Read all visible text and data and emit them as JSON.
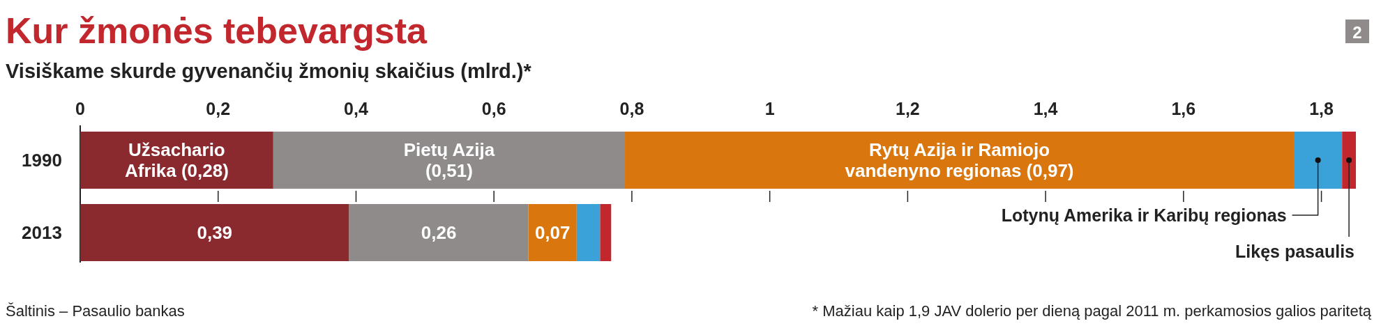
{
  "chart_data": {
    "type": "bar",
    "orientation": "horizontal",
    "stacked": true,
    "title": "Kur žmonės tebevargsta",
    "subtitle": "Visiškame skurde gyvenančių žmonių skaičius (mlrd.)*",
    "categories": [
      "1990",
      "2013"
    ],
    "xlim": [
      0,
      1.85
    ],
    "xticks": [
      0,
      {
        "value": 0.2,
        "label": "0,2"
      },
      {
        "value": 0.4,
        "label": "0,4"
      },
      {
        "value": 0.6,
        "label": "0,6"
      },
      {
        "value": 0.8,
        "label": "0,8"
      },
      1,
      {
        "value": 1.2,
        "label": "1,2"
      },
      {
        "value": 1.4,
        "label": "1,4"
      },
      {
        "value": 1.6,
        "label": "1,6"
      },
      {
        "value": 1.8,
        "label": "1,8"
      }
    ],
    "series": [
      {
        "color": "#8a2a2e",
        "values": [
          0.28,
          0.39
        ],
        "value_labels": [
          "Užsachario\nAfrika (0,28)",
          "0,39"
        ]
      },
      {
        "color": "#8f8b8b",
        "values": [
          0.51,
          0.26
        ],
        "value_labels": [
          "Pietų Azija\n(0,51)",
          "0,26"
        ]
      },
      {
        "color": "#d9760e",
        "values": [
          0.97,
          0.07
        ],
        "value_labels": [
          "Rytų Azija ir Ramiojo\nvandenyno regionas (0,97)",
          "0,07"
        ]
      },
      {
        "name": "Lotynų Amerika ir Karibų regionas",
        "color": "#3aa2d9",
        "values": [
          0.07,
          0.034
        ]
      },
      {
        "name": "Likęs pasaulis",
        "color": "#c1272d",
        "values": [
          0.02,
          0.016
        ]
      }
    ],
    "annotations": [
      "2",
      "Šaltinis – Pasaulio bankas",
      "* Mažiau kaip 1,9 JAV dolerio per dieną pagal 2011 m. perkamosios galios paritetą"
    ]
  }
}
